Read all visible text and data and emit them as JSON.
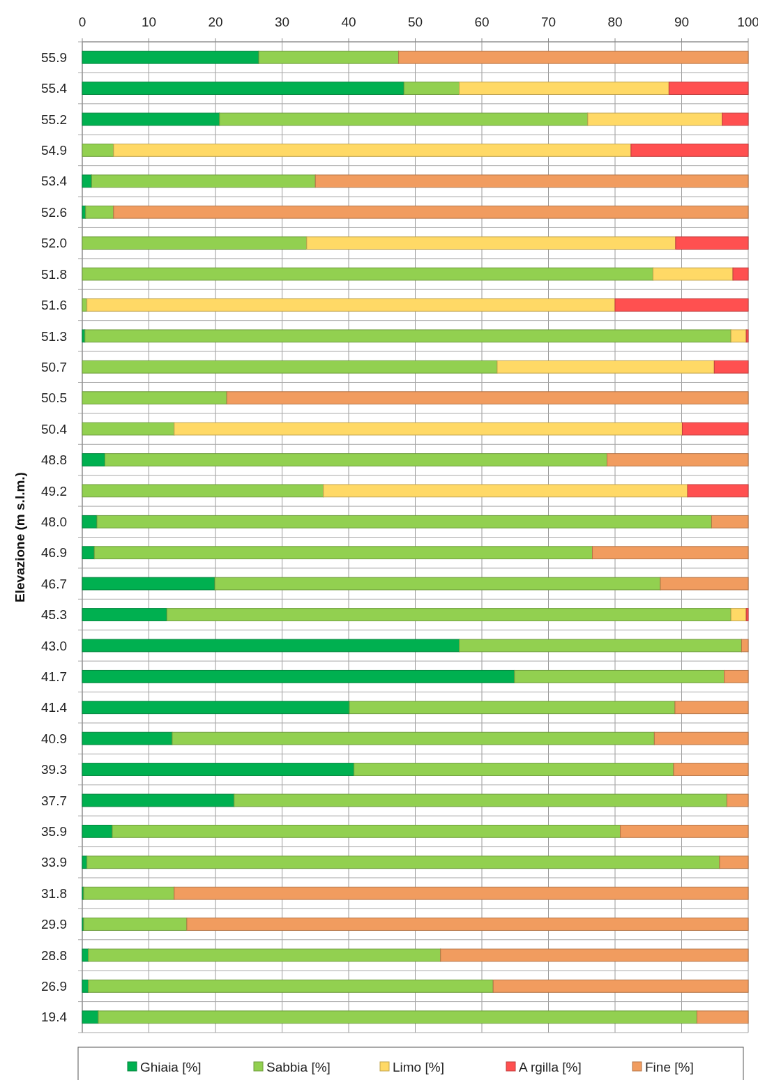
{
  "chart_data": {
    "type": "bar",
    "orientation": "horizontal",
    "stacked": true,
    "ylabel": "Elevazione (m s.l.m.)",
    "categories": [
      "55.9",
      "55.4",
      "55.2",
      "54.9",
      "53.4",
      "52.6",
      "52.0",
      "51.8",
      "51.6",
      "51.3",
      "50.7",
      "50.5",
      "50.4",
      "48.8",
      "49.2",
      "48.0",
      "46.9",
      "46.7",
      "45.3",
      "43.0",
      "41.7",
      "41.4",
      "40.9",
      "39.3",
      "37.7",
      "35.9",
      "33.9",
      "31.8",
      "29.9",
      "28.8",
      "26.9",
      "19.4"
    ],
    "xlim": [
      0,
      100
    ],
    "xticks": [
      0,
      10,
      20,
      30,
      40,
      50,
      60,
      70,
      80,
      90,
      100
    ],
    "grid": true,
    "legend": "bottom",
    "series": [
      {
        "name": "Ghiaia [%]",
        "color": "#00b050",
        "values": [
          26.5,
          48.3,
          20.6,
          null,
          1.4,
          0.5,
          null,
          null,
          null,
          0.4,
          null,
          null,
          null,
          3.4,
          null,
          2.2,
          1.8,
          19.9,
          12.7,
          56.6,
          64.9,
          40.1,
          13.5,
          40.8,
          22.8,
          4.5,
          0.7,
          0.2,
          0.2,
          0.9,
          0.9,
          2.4
        ]
      },
      {
        "name": "Sabbia [%]",
        "color": "#92d050",
        "values": [
          21.0,
          8.3,
          55.3,
          4.7,
          33.6,
          4.2,
          33.7,
          85.7,
          0.7,
          97.0,
          62.3,
          21.7,
          13.8,
          75.4,
          36.2,
          92.3,
          74.8,
          66.9,
          84.7,
          42.4,
          31.5,
          48.9,
          72.4,
          48.0,
          74.0,
          76.3,
          95.0,
          13.6,
          15.5,
          52.9,
          60.8,
          89.9
        ]
      },
      {
        "name": "Limo [%]",
        "color": "#ffd966",
        "values": [
          null,
          31.5,
          20.2,
          77.7,
          null,
          null,
          55.4,
          12.0,
          79.3,
          2.3,
          32.6,
          null,
          76.3,
          null,
          54.7,
          null,
          null,
          null,
          2.3,
          null,
          null,
          null,
          null,
          null,
          null,
          null,
          null,
          null,
          null,
          null,
          null,
          null
        ]
      },
      {
        "name": "A rgilla [%]",
        "color": "#ff5050",
        "values": [
          null,
          11.9,
          3.9,
          17.6,
          null,
          null,
          10.9,
          2.3,
          20.0,
          0.3,
          5.1,
          null,
          9.9,
          null,
          9.1,
          null,
          null,
          null,
          0.3,
          null,
          null,
          null,
          null,
          null,
          null,
          null,
          null,
          null,
          null,
          null,
          null,
          null
        ]
      },
      {
        "name": "Fine [%]",
        "color": "#f19c5f",
        "values": [
          52.5,
          null,
          null,
          null,
          65.0,
          95.3,
          null,
          null,
          null,
          null,
          null,
          78.3,
          null,
          21.2,
          null,
          5.5,
          23.4,
          13.2,
          null,
          1.0,
          3.6,
          11.0,
          14.1,
          11.2,
          3.2,
          19.2,
          4.3,
          86.2,
          84.3,
          46.2,
          38.3,
          7.7
        ]
      }
    ]
  }
}
